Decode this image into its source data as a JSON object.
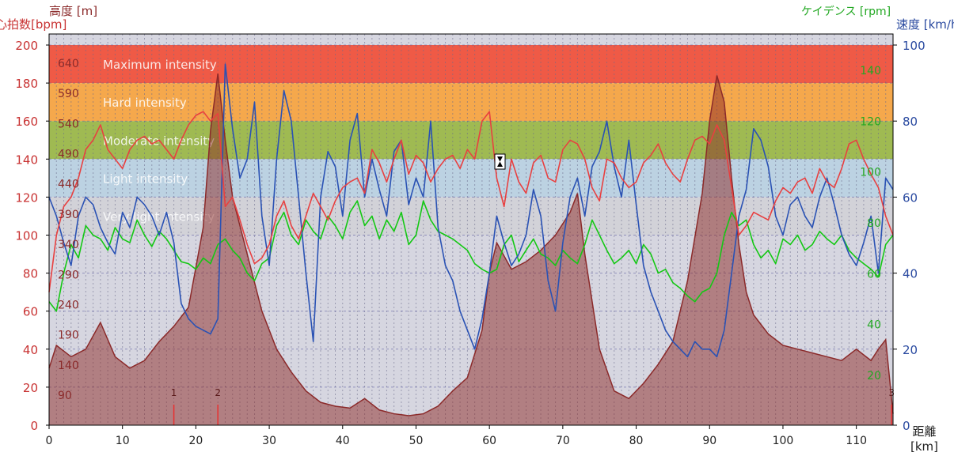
{
  "chart_data": {
    "type": "line",
    "axes": {
      "x": {
        "label": "距離",
        "unit": "[km]",
        "range": [
          0,
          115
        ],
        "ticks": [
          0,
          10,
          20,
          30,
          40,
          50,
          60,
          70,
          80,
          90,
          100,
          110
        ]
      },
      "heart_rate": {
        "label": "心拍数[bpm]",
        "range": [
          0,
          200
        ],
        "ticks": [
          0,
          20,
          40,
          60,
          80,
          100,
          120,
          140,
          160,
          180,
          200
        ]
      },
      "altitude": {
        "label": "高度 [m]",
        "ticks": [
          "90",
          "140",
          "190",
          "240",
          "290",
          "340",
          "390",
          "440",
          "490",
          "540",
          "590",
          "640"
        ]
      },
      "cadence": {
        "label": "ケイデンス [rpm]",
        "ticks": [
          "20",
          "40",
          "60",
          "80",
          "100",
          "120",
          "140"
        ]
      },
      "speed": {
        "label": "速度 [km/h]",
        "range": [
          0,
          100
        ],
        "ticks": [
          0,
          20,
          40,
          60,
          80,
          100
        ]
      }
    },
    "zones": [
      {
        "name": "Maximum intensity",
        "hr_range": [
          180,
          200
        ],
        "color": "#ef5a46"
      },
      {
        "name": "Hard intensity",
        "hr_range": [
          160,
          180
        ],
        "color": "#f5a84c"
      },
      {
        "name": "Moderate intensity",
        "hr_range": [
          140,
          160
        ],
        "color": "#9fba52"
      },
      {
        "name": "Light intensity",
        "hr_range": [
          120,
          140
        ],
        "color": "#bcd2e2"
      },
      {
        "name": "Very light intensity",
        "hr_range": [
          100,
          120
        ],
        "color": "#d2d2d8"
      },
      {
        "name": "",
        "hr_range": [
          0,
          100
        ],
        "color": "#d6d6e0"
      }
    ],
    "lap_markers": [
      {
        "label": "1",
        "x": 17
      },
      {
        "label": "2",
        "x": 23
      },
      {
        "label": "3",
        "x": 114.8
      }
    ],
    "series": [
      {
        "name": "高度",
        "color": "#8b2a2a",
        "axis": "heart_rate",
        "x": [
          0,
          1,
          3,
          5,
          7,
          9,
          11,
          13,
          15,
          17,
          19,
          21,
          22,
          23,
          24,
          25,
          27,
          29,
          31,
          33,
          35,
          37,
          39,
          41,
          43,
          45,
          47,
          49,
          51,
          53,
          55,
          57,
          59,
          60,
          61,
          63,
          65,
          67,
          69,
          71,
          72,
          73,
          75,
          77,
          79,
          81,
          83,
          85,
          87,
          89,
          90,
          91,
          92,
          93,
          94,
          95,
          96,
          98,
          100,
          102,
          104,
          106,
          108,
          110,
          112,
          113,
          114,
          115
        ],
        "values": [
          30,
          42,
          36,
          40,
          54,
          36,
          30,
          34,
          44,
          52,
          62,
          104,
          155,
          185,
          150,
          120,
          90,
          60,
          40,
          28,
          18,
          12,
          10,
          9,
          14,
          8,
          6,
          5,
          6,
          10,
          18,
          25,
          50,
          80,
          96,
          82,
          86,
          92,
          100,
          112,
          122,
          90,
          40,
          18,
          14,
          22,
          32,
          44,
          76,
          122,
          160,
          184,
          170,
          130,
          95,
          70,
          58,
          48,
          42,
          40,
          38,
          36,
          34,
          40,
          34,
          40,
          45,
          6
        ]
      },
      {
        "name": "心拍数",
        "color": "#e84040",
        "axis": "heart_rate",
        "x": [
          0,
          1,
          2,
          3,
          4,
          5,
          6,
          7,
          8,
          9,
          10,
          11,
          12,
          13,
          14,
          15,
          16,
          17,
          18,
          19,
          20,
          21,
          22,
          23,
          24,
          25,
          26,
          27,
          28,
          29,
          30,
          31,
          32,
          33,
          34,
          35,
          36,
          37,
          38,
          39,
          40,
          41,
          42,
          43,
          44,
          45,
          46,
          47,
          48,
          49,
          50,
          51,
          52,
          53,
          54,
          55,
          56,
          57,
          58,
          59,
          60,
          61,
          62,
          63,
          64,
          65,
          66,
          67,
          68,
          69,
          70,
          71,
          72,
          73,
          74,
          75,
          76,
          77,
          78,
          79,
          80,
          81,
          82,
          83,
          84,
          85,
          86,
          87,
          88,
          89,
          90,
          91,
          92,
          93,
          94,
          95,
          96,
          97,
          98,
          99,
          100,
          101,
          102,
          103,
          104,
          105,
          106,
          107,
          108,
          109,
          110,
          111,
          112,
          113,
          114,
          115
        ],
        "values": [
          70,
          100,
          115,
          120,
          130,
          145,
          150,
          158,
          145,
          140,
          135,
          145,
          150,
          152,
          148,
          150,
          145,
          140,
          150,
          158,
          163,
          165,
          160,
          164,
          115,
          120,
          108,
          95,
          85,
          88,
          95,
          110,
          118,
          105,
          98,
          110,
          122,
          115,
          108,
          118,
          125,
          128,
          130,
          122,
          145,
          138,
          128,
          140,
          150,
          132,
          142,
          138,
          128,
          135,
          140,
          142,
          135,
          145,
          140,
          160,
          165,
          130,
          115,
          140,
          128,
          122,
          138,
          142,
          130,
          128,
          145,
          150,
          148,
          140,
          125,
          118,
          140,
          138,
          130,
          125,
          128,
          138,
          142,
          148,
          138,
          132,
          128,
          140,
          150,
          152,
          148,
          158,
          150,
          125,
          100,
          105,
          112,
          110,
          108,
          118,
          125,
          122,
          128,
          130,
          122,
          135,
          128,
          125,
          135,
          148,
          150,
          140,
          132,
          125,
          110,
          100
        ]
      },
      {
        "name": "ケイデンス",
        "color": "#14c814",
        "axis": "heart_rate",
        "x": [
          0,
          1,
          2,
          3,
          4,
          5,
          6,
          7,
          8,
          9,
          10,
          11,
          12,
          13,
          14,
          15,
          16,
          17,
          18,
          19,
          20,
          21,
          22,
          23,
          24,
          25,
          26,
          27,
          28,
          29,
          30,
          31,
          32,
          33,
          34,
          35,
          36,
          37,
          38,
          39,
          40,
          41,
          42,
          43,
          44,
          45,
          46,
          47,
          48,
          49,
          50,
          51,
          52,
          53,
          54,
          55,
          56,
          57,
          58,
          59,
          60,
          61,
          62,
          63,
          64,
          65,
          66,
          67,
          68,
          69,
          70,
          71,
          72,
          73,
          74,
          75,
          76,
          77,
          78,
          79,
          80,
          81,
          82,
          83,
          84,
          85,
          86,
          87,
          88,
          89,
          90,
          91,
          92,
          93,
          94,
          95,
          96,
          97,
          98,
          99,
          100,
          101,
          102,
          103,
          104,
          105,
          106,
          107,
          108,
          109,
          110,
          111,
          112,
          113,
          114,
          115
        ],
        "values": [
          65,
          60,
          80,
          95,
          88,
          105,
          100,
          98,
          92,
          104,
          98,
          96,
          108,
          100,
          94,
          102,
          98,
          92,
          86,
          85,
          82,
          88,
          85,
          95,
          98,
          92,
          88,
          80,
          76,
          85,
          88,
          105,
          112,
          100,
          95,
          108,
          102,
          98,
          110,
          105,
          98,
          112,
          118,
          105,
          110,
          98,
          108,
          102,
          112,
          95,
          100,
          118,
          108,
          102,
          100,
          98,
          95,
          92,
          85,
          82,
          80,
          82,
          95,
          100,
          86,
          92,
          98,
          90,
          88,
          84,
          92,
          88,
          85,
          95,
          108,
          100,
          92,
          85,
          88,
          92,
          85,
          95,
          90,
          80,
          82,
          75,
          72,
          68,
          65,
          70,
          72,
          80,
          100,
          112,
          105,
          108,
          95,
          88,
          92,
          85,
          98,
          95,
          100,
          92,
          95,
          102,
          98,
          95,
          100,
          92,
          88,
          85,
          82,
          78,
          95,
          100
        ]
      },
      {
        "name": "速度",
        "color": "#2a52b4",
        "axis": "heart_rate",
        "x": [
          0,
          1,
          2,
          3,
          4,
          5,
          6,
          7,
          8,
          9,
          10,
          11,
          12,
          13,
          14,
          15,
          16,
          17,
          18,
          19,
          20,
          21,
          22,
          23,
          24,
          25,
          26,
          27,
          28,
          29,
          30,
          31,
          32,
          33,
          34,
          35,
          36,
          37,
          38,
          39,
          40,
          41,
          42,
          43,
          44,
          45,
          46,
          47,
          48,
          49,
          50,
          51,
          52,
          53,
          54,
          55,
          56,
          57,
          58,
          59,
          60,
          61,
          62,
          63,
          64,
          65,
          66,
          67,
          68,
          69,
          70,
          71,
          72,
          73,
          74,
          75,
          76,
          77,
          78,
          79,
          80,
          81,
          82,
          83,
          84,
          85,
          86,
          87,
          88,
          89,
          90,
          91,
          92,
          93,
          94,
          95,
          96,
          97,
          98,
          99,
          100,
          101,
          102,
          103,
          104,
          105,
          106,
          107,
          108,
          109,
          110,
          111,
          112,
          113,
          114,
          115
        ],
        "values": [
          60,
          55,
          48,
          42,
          55,
          60,
          58,
          52,
          48,
          45,
          56,
          52,
          60,
          58,
          55,
          50,
          56,
          48,
          32,
          28,
          26,
          25,
          24,
          28,
          95,
          78,
          65,
          70,
          85,
          55,
          42,
          70,
          88,
          80,
          60,
          40,
          22,
          60,
          72,
          68,
          55,
          75,
          82,
          60,
          70,
          62,
          55,
          72,
          75,
          58,
          65,
          60,
          80,
          52,
          42,
          38,
          30,
          25,
          20,
          28,
          40,
          55,
          48,
          42,
          45,
          50,
          62,
          55,
          38,
          30,
          48,
          60,
          65,
          55,
          68,
          72,
          80,
          68,
          60,
          75,
          58,
          42,
          35,
          30,
          25,
          22,
          20,
          18,
          22,
          20,
          20,
          18,
          25,
          40,
          55,
          62,
          78,
          75,
          68,
          55,
          50,
          58,
          60,
          55,
          52,
          60,
          65,
          58,
          50,
          45,
          42,
          48,
          55,
          40,
          65,
          62
        ]
      }
    ]
  }
}
